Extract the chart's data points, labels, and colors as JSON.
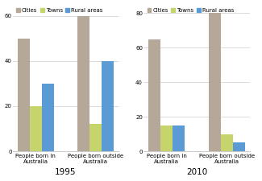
{
  "title_1995": "1995",
  "title_2010": "2010",
  "categories": [
    "People born in Australia",
    "People born outside Australia"
  ],
  "series": [
    "Cities",
    "Towns",
    "Rural areas"
  ],
  "colors": [
    "#b5a899",
    "#c5d56b",
    "#5b9bd5"
  ],
  "data_1995": {
    "People born in Australia": [
      50,
      20,
      30
    ],
    "People born outside Australia": [
      60,
      12,
      40
    ]
  },
  "data_2010": {
    "People born in Australia": [
      65,
      15,
      15
    ],
    "People born outside Australia": [
      80,
      10,
      5
    ]
  },
  "ylim_1995": [
    0,
    65
  ],
  "ylim_2010": [
    0,
    85
  ],
  "yticks_1995": [
    0,
    20,
    40,
    60
  ],
  "yticks_2010": [
    0,
    20,
    40,
    60,
    80
  ],
  "bar_width": 0.2,
  "legend_fontsize": 5.0,
  "tick_fontsize": 5,
  "xlabel_fontsize": 5,
  "title_fontsize": 7.5,
  "background_color": "#ffffff"
}
